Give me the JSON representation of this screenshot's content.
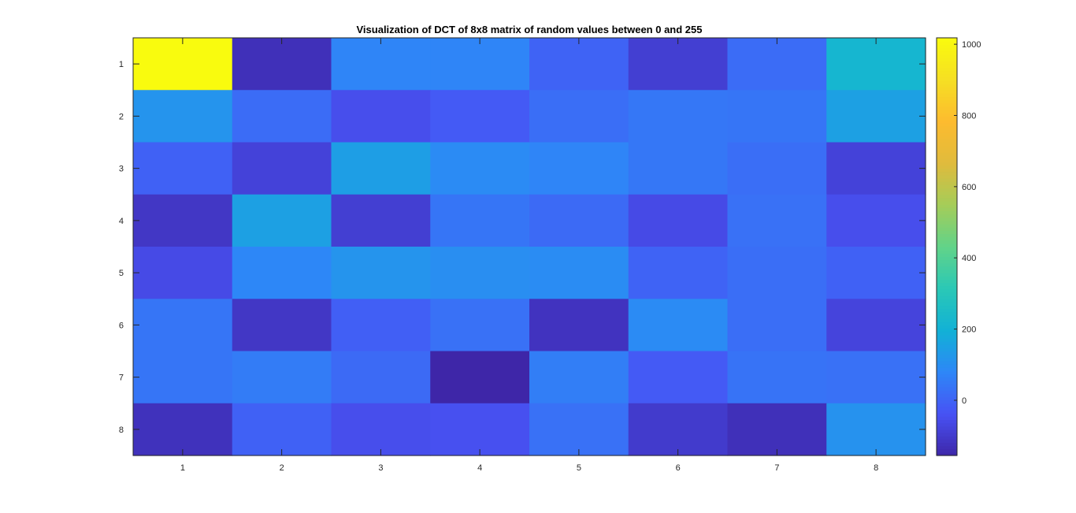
{
  "chart_data": {
    "type": "heatmap",
    "title": "Visualization of DCT of 8x8 matrix of random values between 0 and 255",
    "xlabel": "",
    "ylabel": "",
    "x_categories": [
      "1",
      "2",
      "3",
      "4",
      "5",
      "6",
      "7",
      "8"
    ],
    "y_categories": [
      "1",
      "2",
      "3",
      "4",
      "5",
      "6",
      "7",
      "8"
    ],
    "values": [
      [
        1018,
        -130,
        75,
        75,
        0,
        -90,
        20,
        220
      ],
      [
        115,
        20,
        -50,
        -20,
        25,
        45,
        40,
        150
      ],
      [
        -5,
        -80,
        145,
        90,
        75,
        45,
        25,
        -80
      ],
      [
        -110,
        150,
        -90,
        40,
        15,
        -60,
        30,
        -50
      ],
      [
        -60,
        80,
        115,
        100,
        95,
        0,
        25,
        -5
      ],
      [
        40,
        -110,
        -10,
        30,
        -120,
        90,
        25,
        -75
      ],
      [
        40,
        55,
        15,
        -155,
        60,
        -20,
        35,
        30
      ],
      [
        -125,
        -5,
        -50,
        -45,
        30,
        -100,
        -130,
        110
      ]
    ],
    "colorbar": {
      "range": [
        -155,
        1018
      ],
      "ticks": [
        "0",
        "200",
        "400",
        "600",
        "800",
        "1000"
      ],
      "colormap": "parula"
    },
    "legend": "colorbar-right",
    "grid": false
  }
}
